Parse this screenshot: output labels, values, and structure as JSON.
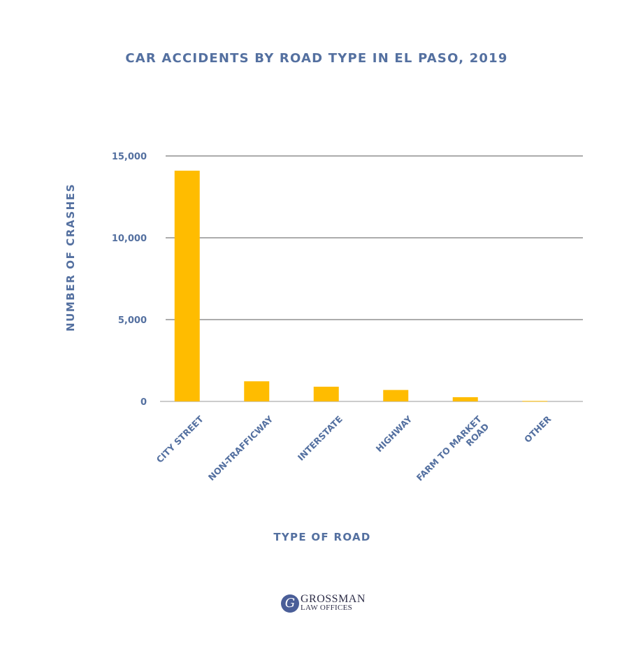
{
  "colors": {
    "bar": "#FFBC00",
    "text": "#5470A0",
    "grid": "#5a5a5a",
    "baseline": "#999999"
  },
  "chart_data": {
    "type": "bar",
    "title": "CAR ACCIDENTS BY ROAD TYPE IN EL PASO, 2019",
    "xlabel": "TYPE OF ROAD",
    "ylabel": "NUMBER OF CRASHES",
    "categories": [
      "CITY STREET",
      "NON-TRAFFICWAY",
      "INTERSTATE",
      "HIGHWAY",
      "FARM TO MARKET ROAD",
      "OTHER"
    ],
    "category_lines": [
      [
        "CITY STREET"
      ],
      [
        "NON-TRAFFICWAY"
      ],
      [
        "INTERSTATE"
      ],
      [
        "HIGHWAY"
      ],
      [
        "FARM TO MARKET",
        "ROAD"
      ],
      [
        "OTHER"
      ]
    ],
    "values": [
      14100,
      1230,
      900,
      700,
      260,
      30
    ],
    "ylim": [
      0,
      15000
    ],
    "yticks": [
      0,
      5000,
      10000,
      15000
    ],
    "ytick_labels": [
      "0",
      "5,000",
      "10,000",
      "15,000"
    ],
    "grid": true,
    "legend": "none"
  },
  "logo": {
    "mark": "G",
    "line1": "GROSSMAN",
    "line2": "LAW OFFICES"
  }
}
